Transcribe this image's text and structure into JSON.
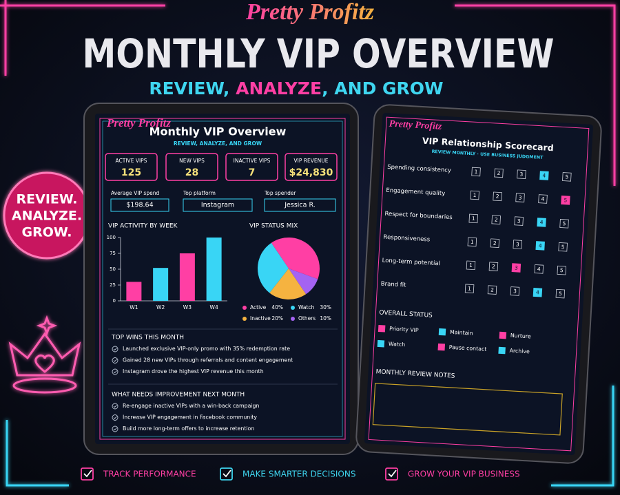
{
  "brand": "Pretty Profitz",
  "title": "MONTHLY VIP OVERVIEW",
  "subtitle": [
    {
      "text": "REVIEW, ",
      "color": "#3fd6f0"
    },
    {
      "text": "ANALYZE",
      "color": "#ff3fa4"
    },
    {
      "text": ", AND GROW",
      "color": "#3fd6f0"
    }
  ],
  "badge": [
    "REVIEW.",
    "ANALYZE.",
    "GROW."
  ],
  "left_tablet": {
    "brand": "Pretty Profitz",
    "title": "Monthly VIP Overview",
    "subtitle": "REVIEW, ANALYZE, AND GROW",
    "kpis": [
      {
        "label": "ACTIVE VIPS",
        "value": "125"
      },
      {
        "label": "NEW VIPS",
        "value": "28"
      },
      {
        "label": "INACTIVE VIPS",
        "value": "7"
      },
      {
        "label": "VIP REVENUE",
        "value": "$24,830"
      }
    ],
    "stats": [
      {
        "label": "Average VIP spend",
        "value": "$198.64"
      },
      {
        "label": "Top platform",
        "value": "Instagram"
      },
      {
        "label": "Top spender",
        "value": "Jessica R."
      }
    ],
    "bar_chart": {
      "type": "bar",
      "title": "VIP ACTIVITY BY WEEK",
      "categories": [
        "W1",
        "W2",
        "W3",
        "W4"
      ],
      "values": [
        30,
        52,
        75,
        100
      ],
      "colors": [
        "#ff3fa4",
        "#39d5f5",
        "#ff3fa4",
        "#39d5f5"
      ],
      "ylim": [
        0,
        100
      ],
      "yticks": [
        0,
        25,
        50,
        75,
        100
      ]
    },
    "pie_chart": {
      "type": "pie",
      "title": "VIP STATUS MIX",
      "categories": [
        "Active",
        "Watch",
        "Inactive",
        "Others"
      ],
      "values": [
        40,
        30,
        20,
        10
      ],
      "value_labels": [
        "40%",
        "30%",
        "20%",
        "10%"
      ],
      "colors": [
        "#ff3fa4",
        "#39d5f5",
        "#f5b340",
        "#a463f2"
      ]
    },
    "wins": {
      "title": "TOP WINS THIS MONTH",
      "items": [
        "Launched exclusive VIP-only promo with 35% redemption rate",
        "Gained 28 new VIPs through referrals and content engagement",
        "Instagram drove the highest VIP revenue this month"
      ]
    },
    "improve": {
      "title": "WHAT NEEDS IMPROVEMENT NEXT MONTH",
      "items": [
        "Re-engage inactive VIPs with a win-back campaign",
        "Increase VIP engagement in Facebook community",
        "Build more long-term offers to increase retention"
      ]
    }
  },
  "right_tablet": {
    "brand": "Pretty Profitz",
    "title": "VIP Relationship Scorecard",
    "subtitle": "REVIEW MONTHLY · USE BUSINESS JUDGMENT",
    "scale": [
      1,
      2,
      3,
      4,
      5
    ],
    "criteria": [
      {
        "label": "Spending consistency",
        "selected": 4,
        "color": "#39d5f5"
      },
      {
        "label": "Engagement quality",
        "selected": 5,
        "color": "#ff3fa4"
      },
      {
        "label": "Respect for boundaries",
        "selected": 4,
        "color": "#39d5f5"
      },
      {
        "label": "Responsiveness",
        "selected": 4,
        "color": "#39d5f5"
      },
      {
        "label": "Long-term potential",
        "selected": 3,
        "color": "#ff3fa4"
      },
      {
        "label": "Brand fit",
        "selected": 4,
        "color": "#39d5f5"
      }
    ],
    "status": {
      "title": "OVERALL STATUS",
      "items": [
        {
          "label": "Priority VIP",
          "color": "#ff3fa4"
        },
        {
          "label": "Maintain",
          "color": "#39d5f5"
        },
        {
          "label": "Nurture",
          "color": "#ff3fa4"
        },
        {
          "label": "Watch",
          "color": "#39d5f5"
        },
        {
          "label": "Pause contact",
          "color": "#ff3fa4"
        },
        {
          "label": "Archive",
          "color": "#39d5f5"
        }
      ]
    },
    "notes_title": "MONTHLY REVIEW NOTES"
  },
  "footer": [
    {
      "text": "TRACK PERFORMANCE",
      "color": "#ff3fa4"
    },
    {
      "text": "MAKE SMARTER DECISIONS",
      "color": "#3fd6f0"
    },
    {
      "text": "GROW YOUR VIP BUSINESS",
      "color": "#ff3fa4"
    }
  ]
}
